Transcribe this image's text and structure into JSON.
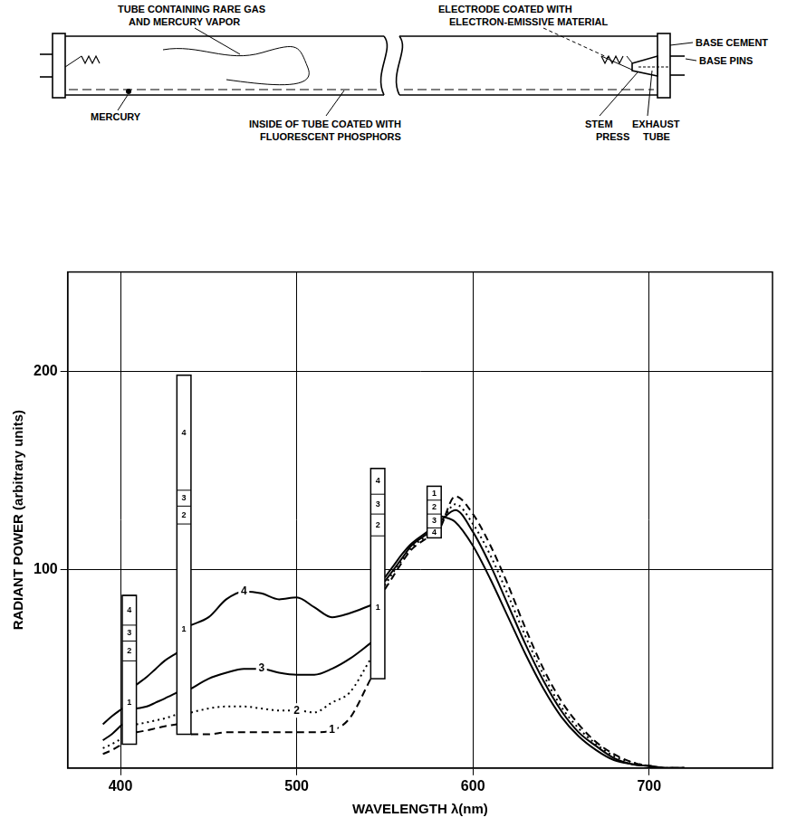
{
  "diagram": {
    "labels": [
      {
        "lines": [
          "TUBE CONTAINING RARE GAS",
          "AND MERCURY VAPOR"
        ]
      },
      {
        "lines": [
          "ELECTRODE COATED WITH",
          "ELECTRON-EMISSIVE MATERIAL"
        ]
      },
      {
        "lines": [
          "BASE CEMENT"
        ]
      },
      {
        "lines": [
          "BASE PINS"
        ]
      },
      {
        "lines": [
          "MERCURY"
        ]
      },
      {
        "lines": [
          "INSIDE OF TUBE COATED WITH",
          "FLUORESCENT PHOSPHORS"
        ]
      },
      {
        "lines": [
          "STEM",
          "PRESS"
        ]
      },
      {
        "lines": [
          "EXHAUST",
          "TUBE"
        ]
      }
    ]
  },
  "chart_data": {
    "type": "line",
    "x_label": "WAVELENGTH λ(nm)",
    "y_label": "RADIANT POWER (arbitrary units)",
    "x": [
      390,
      395,
      401,
      405,
      409,
      415,
      420,
      425,
      432,
      436,
      440,
      450,
      460,
      470,
      480,
      490,
      500,
      510,
      520,
      530,
      542,
      546,
      550,
      555,
      560,
      565,
      574,
      578,
      582,
      590,
      600,
      610,
      620,
      630,
      640,
      650,
      660,
      670,
      680,
      690,
      700,
      710,
      720
    ],
    "xlim": [
      370,
      770
    ],
    "xticks": [
      400,
      500,
      600,
      700
    ],
    "ylim": [
      0,
      250
    ],
    "yticks": [
      100,
      200
    ],
    "grid": true,
    "mercury_lines": [
      405,
      436,
      546,
      578
    ],
    "series": [
      {
        "name": "1",
        "color": "#000000",
        "line_style": "dashed",
        "values": [
          7,
          9,
          12,
          null,
          18,
          19,
          20,
          21,
          22,
          null,
          17,
          17,
          18,
          18,
          18,
          18,
          18,
          18,
          19,
          25,
          45,
          null,
          90,
          97,
          104,
          110,
          116,
          null,
          122,
          137,
          128,
          112,
          92,
          70,
          50,
          34,
          22,
          13,
          7,
          3,
          1,
          0,
          0
        ],
        "line_peaks": [
          54,
          123,
          117,
          142
        ]
      },
      {
        "name": "2",
        "color": "#000000",
        "line_style": "dotted",
        "values": [
          10,
          12,
          15,
          null,
          22,
          23,
          24,
          25,
          27,
          null,
          28,
          30,
          31,
          31,
          30,
          29,
          29,
          28,
          33,
          38,
          55,
          null,
          92,
          99,
          105,
          111,
          117,
          null,
          124,
          133,
          123,
          107,
          87,
          66,
          47,
          31,
          20,
          12,
          6,
          3,
          1,
          0,
          0
        ],
        "line_peaks": [
          64,
          132,
          128,
          135
        ]
      },
      {
        "name": "3",
        "color": "#000000",
        "line_style": "solid",
        "values": [
          14,
          17,
          22,
          null,
          30,
          31,
          33,
          35,
          38,
          null,
          40,
          45,
          48,
          50,
          50,
          48,
          47,
          47,
          50,
          55,
          63,
          null,
          94,
          100,
          106,
          112,
          118,
          null,
          125,
          130,
          119,
          102,
          82,
          62,
          44,
          29,
          18,
          11,
          5,
          2,
          1,
          0,
          0
        ],
        "line_peaks": [
          72,
          140,
          138,
          128
        ]
      },
      {
        "name": "4",
        "color": "#000000",
        "line_style": "solid",
        "values": [
          22,
          26,
          30,
          null,
          42,
          46,
          50,
          54,
          58,
          null,
          72,
          76,
          85,
          89,
          88,
          85,
          86,
          81,
          76,
          78,
          82,
          null,
          96,
          102,
          108,
          113,
          119,
          null,
          127,
          124,
          112,
          95,
          76,
          57,
          40,
          26,
          16,
          9,
          4,
          2,
          1,
          0,
          0
        ],
        "line_peaks": [
          87,
          198,
          151,
          121
        ]
      }
    ]
  }
}
